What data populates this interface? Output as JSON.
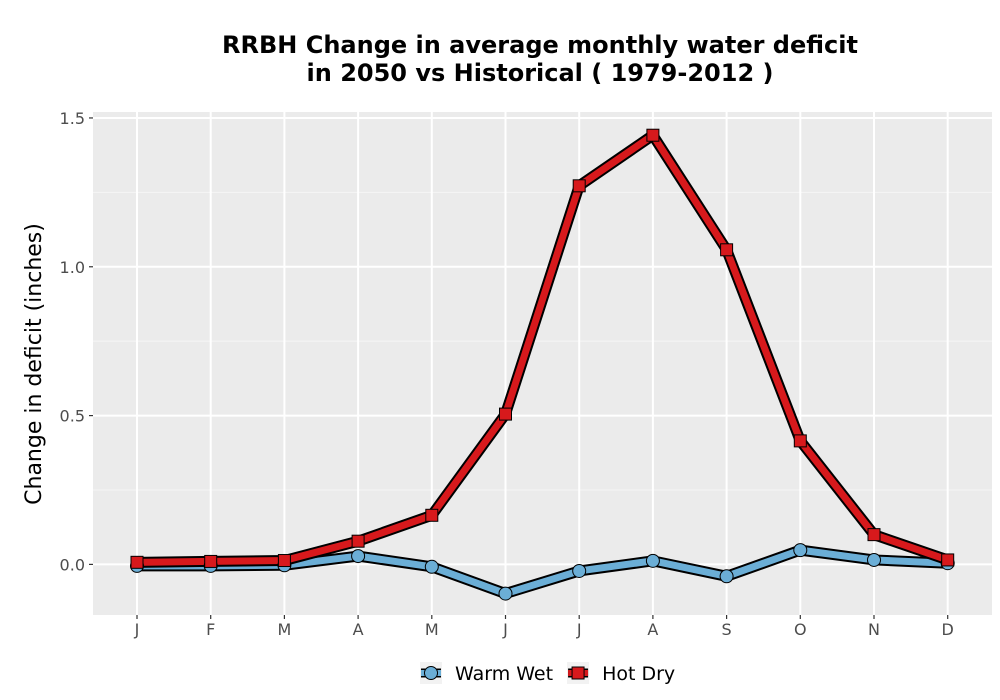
{
  "chart_data": {
    "type": "line",
    "title_line1": "RRBH  Change in average monthly water deficit",
    "title_line2": "in 2050 vs Historical ( 1979-2012 )",
    "xlabel": "",
    "ylabel": "Change in deficit (inches)",
    "categories": [
      "J",
      "F",
      "M",
      "A",
      "M",
      "J",
      "J",
      "A",
      "S",
      "O",
      "N",
      "D"
    ],
    "ylim": [
      -0.17,
      1.52
    ],
    "yticks": [
      0.0,
      0.5,
      1.0,
      1.5
    ],
    "ytick_labels": [
      "0.0",
      "0.5",
      "1.0",
      "1.5"
    ],
    "grid": true,
    "legend_position": "bottom",
    "series": [
      {
        "name": "Warm Wet",
        "color": "#6baed6",
        "marker": "circle",
        "values": [
          -0.005,
          -0.005,
          -0.003,
          0.028,
          -0.008,
          -0.098,
          -0.022,
          0.012,
          -0.04,
          0.048,
          0.015,
          0.004
        ]
      },
      {
        "name": "Hot Dry",
        "color": "#d7191c",
        "marker": "square",
        "values": [
          0.007,
          0.01,
          0.013,
          0.078,
          0.165,
          0.505,
          1.272,
          1.442,
          1.057,
          0.415,
          0.1,
          0.015
        ]
      }
    ]
  }
}
